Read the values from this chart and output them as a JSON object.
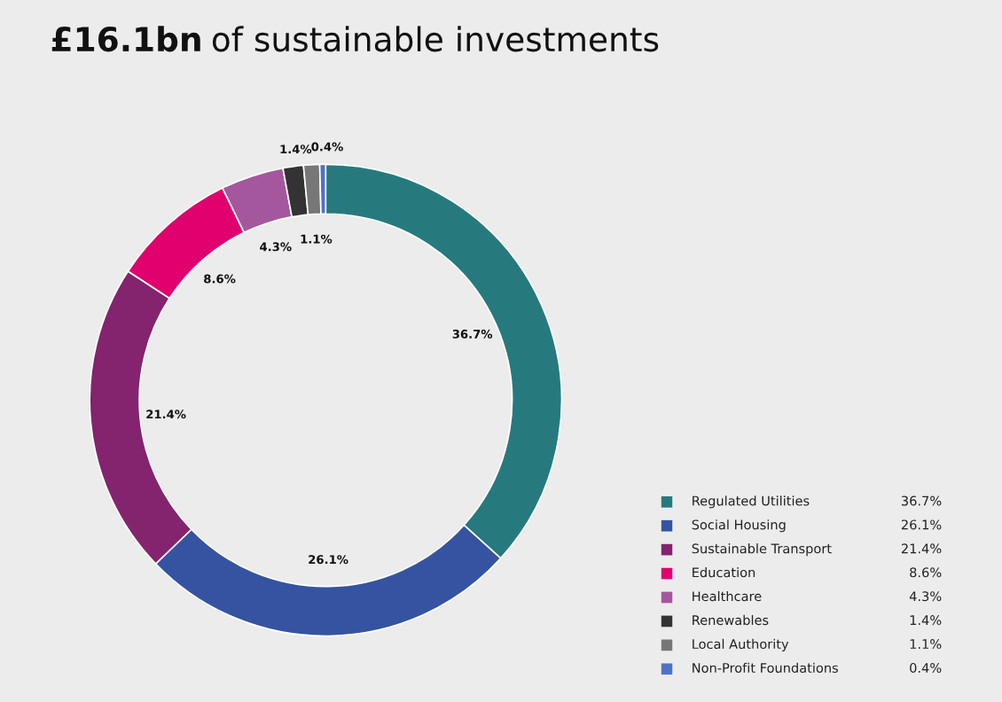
{
  "chart_data": {
    "type": "donut",
    "title": "£16.1bn of sustainable investments",
    "categories": [
      "Regulated Utilities",
      "Social Housing",
      "Sustainable Transport",
      "Education",
      "Healthcare",
      "Renewables",
      "Local Authority",
      "Non-Profit Foundations"
    ],
    "values": [
      36.7,
      26.1,
      21.4,
      8.6,
      4.3,
      1.4,
      1.1,
      0.4
    ],
    "colors": [
      "#267a7e",
      "#3553a0",
      "#84236e",
      "#e0006e",
      "#a5579e",
      "#333333",
      "#777777",
      "#4e73c4"
    ],
    "value_labels": [
      "36.7%",
      "26.1%",
      "21.4%",
      "8.6%",
      "4.3%",
      "1.4%",
      "1.1%",
      "0.4%"
    ],
    "legend": "bottom right"
  }
}
